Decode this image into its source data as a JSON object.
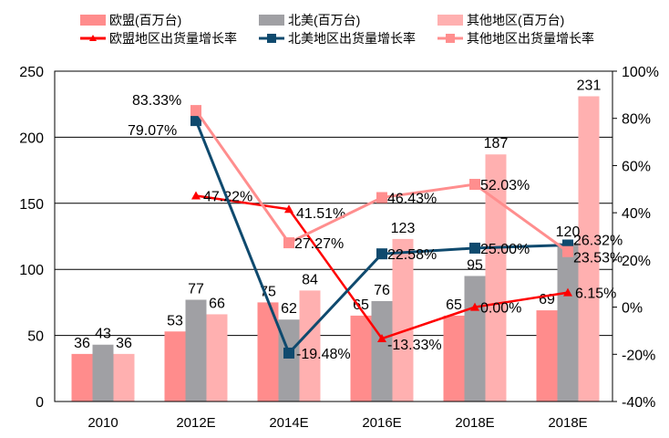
{
  "chart_data": {
    "type": "bar+line",
    "categories": [
      "2010",
      "2012E",
      "2014E",
      "2016E",
      "2018E",
      "2018E"
    ],
    "bar_series": [
      {
        "name": "欧盟(百万台)",
        "color": "#ff8c8c",
        "values": [
          36,
          53,
          75,
          65,
          65,
          69
        ]
      },
      {
        "name": "北美(百万台)",
        "color": "#a0a0a4",
        "values": [
          43,
          77,
          62,
          76,
          95,
          120
        ]
      },
      {
        "name": "其他地区(百万台)",
        "color": "#ffb0b0",
        "values": [
          36,
          66,
          84,
          123,
          187,
          231
        ]
      }
    ],
    "line_series": [
      {
        "name": "欧盟地区出货量增长率",
        "color": "#ff0000",
        "marker": "triangle",
        "values": [
          null,
          47.22,
          41.51,
          -13.33,
          0.0,
          6.15
        ],
        "labels": [
          "",
          "47.22%",
          "41.51%",
          "-13.33%",
          "0.00%",
          "6.15%"
        ]
      },
      {
        "name": "北美地区出货量增长率",
        "color": "#0f4a6e",
        "marker": "square",
        "values": [
          null,
          79.07,
          -19.48,
          22.58,
          25.0,
          26.32
        ],
        "labels": [
          "",
          "79.07%",
          "-19.48%",
          "22.58%",
          "25.00%",
          "26.32%"
        ]
      },
      {
        "name": "其他地区出货量增长率",
        "color": "#ff8e8e",
        "marker": "square",
        "values": [
          null,
          83.33,
          27.27,
          46.43,
          52.03,
          23.53
        ],
        "labels": [
          "",
          "83.33%",
          "27.27%",
          "46.43%",
          "52.03%",
          "23.53%"
        ]
      }
    ],
    "y_left": {
      "range": [
        0,
        250
      ],
      "ticks": [
        "0",
        "50",
        "100",
        "150",
        "200",
        "250"
      ]
    },
    "y_right": {
      "range": [
        -40,
        100
      ],
      "ticks": [
        "-40%",
        "-20%",
        "0%",
        "20%",
        "40%",
        "60%",
        "80%",
        "100%"
      ]
    },
    "grid": true,
    "legend": "top"
  }
}
